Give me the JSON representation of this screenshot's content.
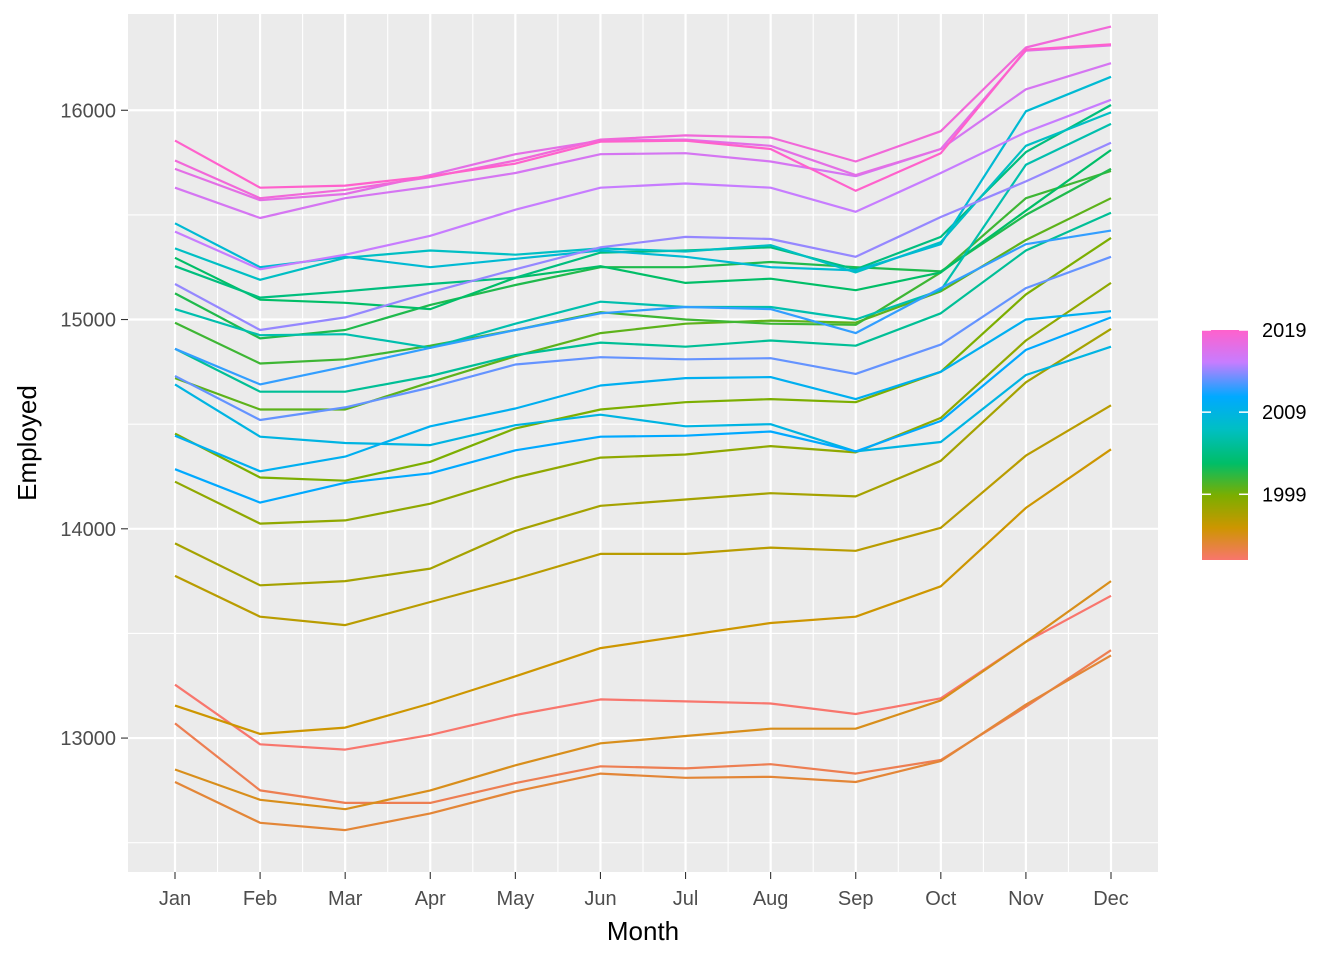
{
  "chart_data": {
    "type": "line",
    "title": "",
    "xlabel": "Month",
    "ylabel": "Employed",
    "categories": [
      "Jan",
      "Feb",
      "Mar",
      "Apr",
      "May",
      "Jun",
      "Jul",
      "Aug",
      "Sep",
      "Oct",
      "Nov",
      "Dec"
    ],
    "ylim": [
      12360,
      16460
    ],
    "yticks": [
      13000,
      14000,
      15000,
      16000
    ],
    "grid": true,
    "legend": {
      "position": "right",
      "type": "colorbar",
      "labels": [
        "2019",
        "2009",
        "1999"
      ],
      "label_values": [
        2019,
        2009,
        1999
      ],
      "range": [
        1991,
        2019
      ]
    },
    "palette": [
      "#f8766d",
      "#cd9600",
      "#7cae00",
      "#00be67",
      "#00bfc4",
      "#00a9ff",
      "#c77cff",
      "#ff61cc"
    ],
    "series": [
      {
        "year": 1991,
        "values": [
          13255,
          12970,
          12945,
          13015,
          13110,
          13185,
          13175,
          13165,
          13115,
          13190,
          13460,
          13680
        ]
      },
      {
        "year": 1992,
        "values": [
          13070,
          12750,
          12690,
          12690,
          12785,
          12865,
          12855,
          12875,
          12830,
          12895,
          13150,
          13420
        ]
      },
      {
        "year": 1993,
        "values": [
          12790,
          12595,
          12560,
          12640,
          12745,
          12830,
          12810,
          12815,
          12790,
          12890,
          13160,
          13395
        ]
      },
      {
        "year": 1994,
        "values": [
          12850,
          12705,
          12660,
          12750,
          12870,
          12975,
          13010,
          13045,
          13045,
          13180,
          13460,
          13750
        ]
      },
      {
        "year": 1995,
        "values": [
          13155,
          13020,
          13050,
          13165,
          13295,
          13430,
          13490,
          13550,
          13580,
          13725,
          14100,
          14380
        ]
      },
      {
        "year": 1996,
        "values": [
          13775,
          13580,
          13540,
          13650,
          13760,
          13880,
          13880,
          13910,
          13895,
          14005,
          14350,
          14590
        ]
      },
      {
        "year": 1997,
        "values": [
          13930,
          13730,
          13750,
          13810,
          13990,
          14110,
          14140,
          14170,
          14155,
          14325,
          14700,
          14955
        ]
      },
      {
        "year": 1998,
        "values": [
          14225,
          14025,
          14040,
          14120,
          14245,
          14340,
          14355,
          14395,
          14365,
          14530,
          14900,
          15175
        ]
      },
      {
        "year": 1999,
        "values": [
          14455,
          14245,
          14230,
          14320,
          14480,
          14570,
          14605,
          14620,
          14605,
          14750,
          15120,
          15390
        ]
      },
      {
        "year": 2000,
        "values": [
          14720,
          14570,
          14570,
          14700,
          14825,
          14935,
          14980,
          14995,
          14985,
          15135,
          15380,
          15580
        ]
      },
      {
        "year": 2001,
        "values": [
          14985,
          14790,
          14810,
          14875,
          14950,
          15035,
          15000,
          14980,
          14975,
          15225,
          15580,
          15710
        ]
      },
      {
        "year": 2002,
        "values": [
          15125,
          14910,
          14950,
          15070,
          15165,
          15250,
          15250,
          15275,
          15250,
          15230,
          15500,
          15720
        ]
      },
      {
        "year": 2003,
        "values": [
          15295,
          15095,
          15080,
          15050,
          15200,
          15255,
          15175,
          15195,
          15140,
          15225,
          15520,
          15810
        ]
      },
      {
        "year": 2004,
        "values": [
          15255,
          15105,
          15135,
          15170,
          15200,
          15320,
          15330,
          15345,
          15240,
          15395,
          15800,
          16025
        ]
      },
      {
        "year": 2005,
        "values": [
          14860,
          14655,
          14655,
          14730,
          14830,
          14890,
          14870,
          14900,
          14875,
          15030,
          15330,
          15510
        ]
      },
      {
        "year": 2006,
        "values": [
          15050,
          14925,
          14930,
          14865,
          14980,
          15085,
          15060,
          15060,
          15000,
          15140,
          15740,
          15935
        ]
      },
      {
        "year": 2007,
        "values": [
          15340,
          15190,
          15295,
          15330,
          15310,
          15340,
          15325,
          15355,
          15225,
          15370,
          15830,
          15990
        ]
      },
      {
        "year": 2008,
        "values": [
          15460,
          15250,
          15300,
          15250,
          15290,
          15330,
          15300,
          15250,
          15235,
          15360,
          15995,
          16160
        ]
      },
      {
        "year": 2009,
        "values": [
          14690,
          14440,
          14410,
          14400,
          14495,
          14545,
          14490,
          14500,
          14370,
          14415,
          14735,
          14870
        ]
      },
      {
        "year": 2010,
        "values": [
          14445,
          14275,
          14345,
          14490,
          14575,
          14685,
          14720,
          14725,
          14620,
          14750,
          15000,
          15040
        ]
      },
      {
        "year": 2011,
        "values": [
          14285,
          14125,
          14220,
          14265,
          14375,
          14440,
          14445,
          14465,
          14370,
          14515,
          14855,
          15010
        ]
      },
      {
        "year": 2012,
        "values": [
          14860,
          14690,
          14775,
          14865,
          14950,
          15030,
          15060,
          15050,
          14935,
          15150,
          15360,
          15425
        ]
      },
      {
        "year": 2013,
        "values": [
          14730,
          14520,
          14580,
          14675,
          14785,
          14820,
          14810,
          14815,
          14740,
          14880,
          15150,
          15300
        ]
      },
      {
        "year": 2014,
        "values": [
          15170,
          14950,
          15010,
          15130,
          15240,
          15345,
          15395,
          15385,
          15300,
          15490,
          15660,
          15845
        ]
      },
      {
        "year": 2015,
        "values": [
          15420,
          15240,
          15310,
          15400,
          15525,
          15630,
          15650,
          15630,
          15515,
          15700,
          15895,
          16050
        ]
      },
      {
        "year": 2016,
        "values": [
          15630,
          15485,
          15580,
          15635,
          15700,
          15790,
          15795,
          15755,
          15685,
          15815,
          16100,
          16225
        ]
      },
      {
        "year": 2017,
        "values": [
          15720,
          15570,
          15600,
          15690,
          15790,
          15855,
          15860,
          15830,
          15690,
          15815,
          16285,
          16310
        ]
      },
      {
        "year": 2018,
        "values": [
          15760,
          15580,
          15620,
          15680,
          15760,
          15860,
          15880,
          15870,
          15755,
          15900,
          16300,
          16400
        ]
      },
      {
        "year": 2019,
        "values": [
          15855,
          15630,
          15640,
          15685,
          15745,
          15850,
          15855,
          15815,
          15615,
          15795,
          16290,
          16315
        ]
      }
    ]
  }
}
